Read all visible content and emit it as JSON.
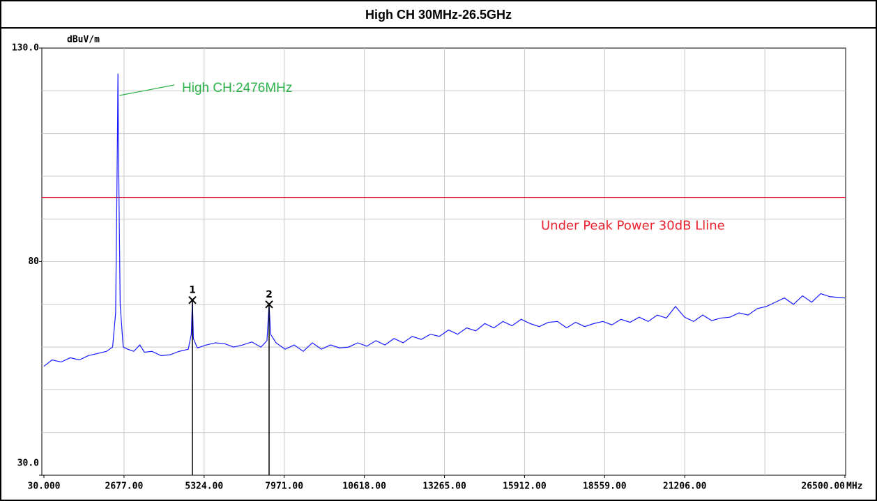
{
  "chart_data": {
    "type": "line",
    "title": "High CH  30MHz-26.5GHz",
    "y_unit": "dBuV/m",
    "x_unit": "MHz",
    "xlim": [
      30,
      26500
    ],
    "ylim": [
      30,
      130
    ],
    "xticks": [
      {
        "value": 30,
        "label": "30.000"
      },
      {
        "value": 2677,
        "label": "2677.00"
      },
      {
        "value": 5324,
        "label": "5324.00"
      },
      {
        "value": 7971,
        "label": "7971.00"
      },
      {
        "value": 10618,
        "label": "10618.00"
      },
      {
        "value": 13265,
        "label": "13265.00"
      },
      {
        "value": 15912,
        "label": "15912.00"
      },
      {
        "value": 18559,
        "label": "18559.00"
      },
      {
        "value": 21206,
        "label": "21206.00"
      },
      {
        "value": 26500,
        "label": "26500.00"
      }
    ],
    "yticks": [
      {
        "value": 130,
        "label": "130.0"
      },
      80,
      {
        "value": 30,
        "label": "30.0"
      }
    ],
    "grid_x": [
      2677,
      5324,
      7971,
      10618,
      13265,
      15912,
      18559,
      21206,
      23853
    ],
    "grid_y": [
      40,
      50,
      60,
      70,
      80,
      90,
      100,
      110,
      120
    ],
    "limit_line": {
      "value": 95,
      "color": "#e8222d",
      "label": "Under Peak Power 30dB Lline"
    },
    "peak_annotation": {
      "text": "High CH:2476MHz",
      "x": 2476,
      "color": "#2db34a"
    },
    "markers": [
      {
        "label": "1",
        "x": 4937,
        "y": 71
      },
      {
        "label": "2",
        "x": 7471,
        "y": 70
      }
    ],
    "series": [
      {
        "color": "#1a1aff",
        "x": [
          30,
          300,
          600,
          900,
          1200,
          1500,
          1800,
          2100,
          2300,
          2400,
          2440,
          2460,
          2476,
          2490,
          2510,
          2550,
          2650,
          2800,
          3000,
          3200,
          3350,
          3600,
          3900,
          4200,
          4500,
          4800,
          4900,
          4937,
          4970,
          5100,
          5400,
          5700,
          6000,
          6300,
          6600,
          6900,
          7200,
          7400,
          7471,
          7520,
          7700,
          8000,
          8300,
          8600,
          8900,
          9200,
          9500,
          9800,
          10100,
          10400,
          10700,
          11000,
          11300,
          11600,
          11900,
          12200,
          12500,
          12800,
          13100,
          13400,
          13700,
          14000,
          14300,
          14600,
          14900,
          15200,
          15500,
          15800,
          16100,
          16400,
          16700,
          17000,
          17300,
          17600,
          17900,
          18200,
          18500,
          18800,
          19100,
          19400,
          19700,
          20000,
          20300,
          20600,
          20900,
          21200,
          21500,
          21800,
          22100,
          22400,
          22700,
          23000,
          23300,
          23600,
          23900,
          24200,
          24500,
          24800,
          25100,
          25400,
          25700,
          26000,
          26500
        ],
        "values": [
          55.5,
          57,
          56.5,
          57.5,
          57,
          58,
          58.5,
          59,
          60,
          68,
          95,
          110,
          124,
          110,
          96,
          70,
          60,
          59.5,
          59,
          60.5,
          58.8,
          59,
          58,
          58.2,
          59,
          59.5,
          63,
          71,
          62,
          59.8,
          60.5,
          61,
          60.8,
          60,
          60.5,
          61.2,
          60,
          61.5,
          70,
          63,
          61,
          59.5,
          60.5,
          59,
          61,
          59.5,
          60.5,
          59.8,
          60,
          61,
          60.2,
          61.5,
          60.5,
          62,
          61,
          62.5,
          61.8,
          63,
          62.5,
          64,
          63,
          64.5,
          63.8,
          65.5,
          64.5,
          66,
          65,
          66.5,
          65.5,
          64.8,
          65.8,
          66,
          64.5,
          65.8,
          64.8,
          65.5,
          66,
          65.2,
          66.5,
          65.8,
          67,
          66,
          67.5,
          66.8,
          69.5,
          67,
          66,
          67.5,
          66.2,
          66.8,
          67,
          68,
          67.5,
          69,
          69.5,
          70.5,
          71.5,
          70,
          72,
          70.5,
          72.5,
          71.8,
          71.5
        ]
      }
    ]
  }
}
